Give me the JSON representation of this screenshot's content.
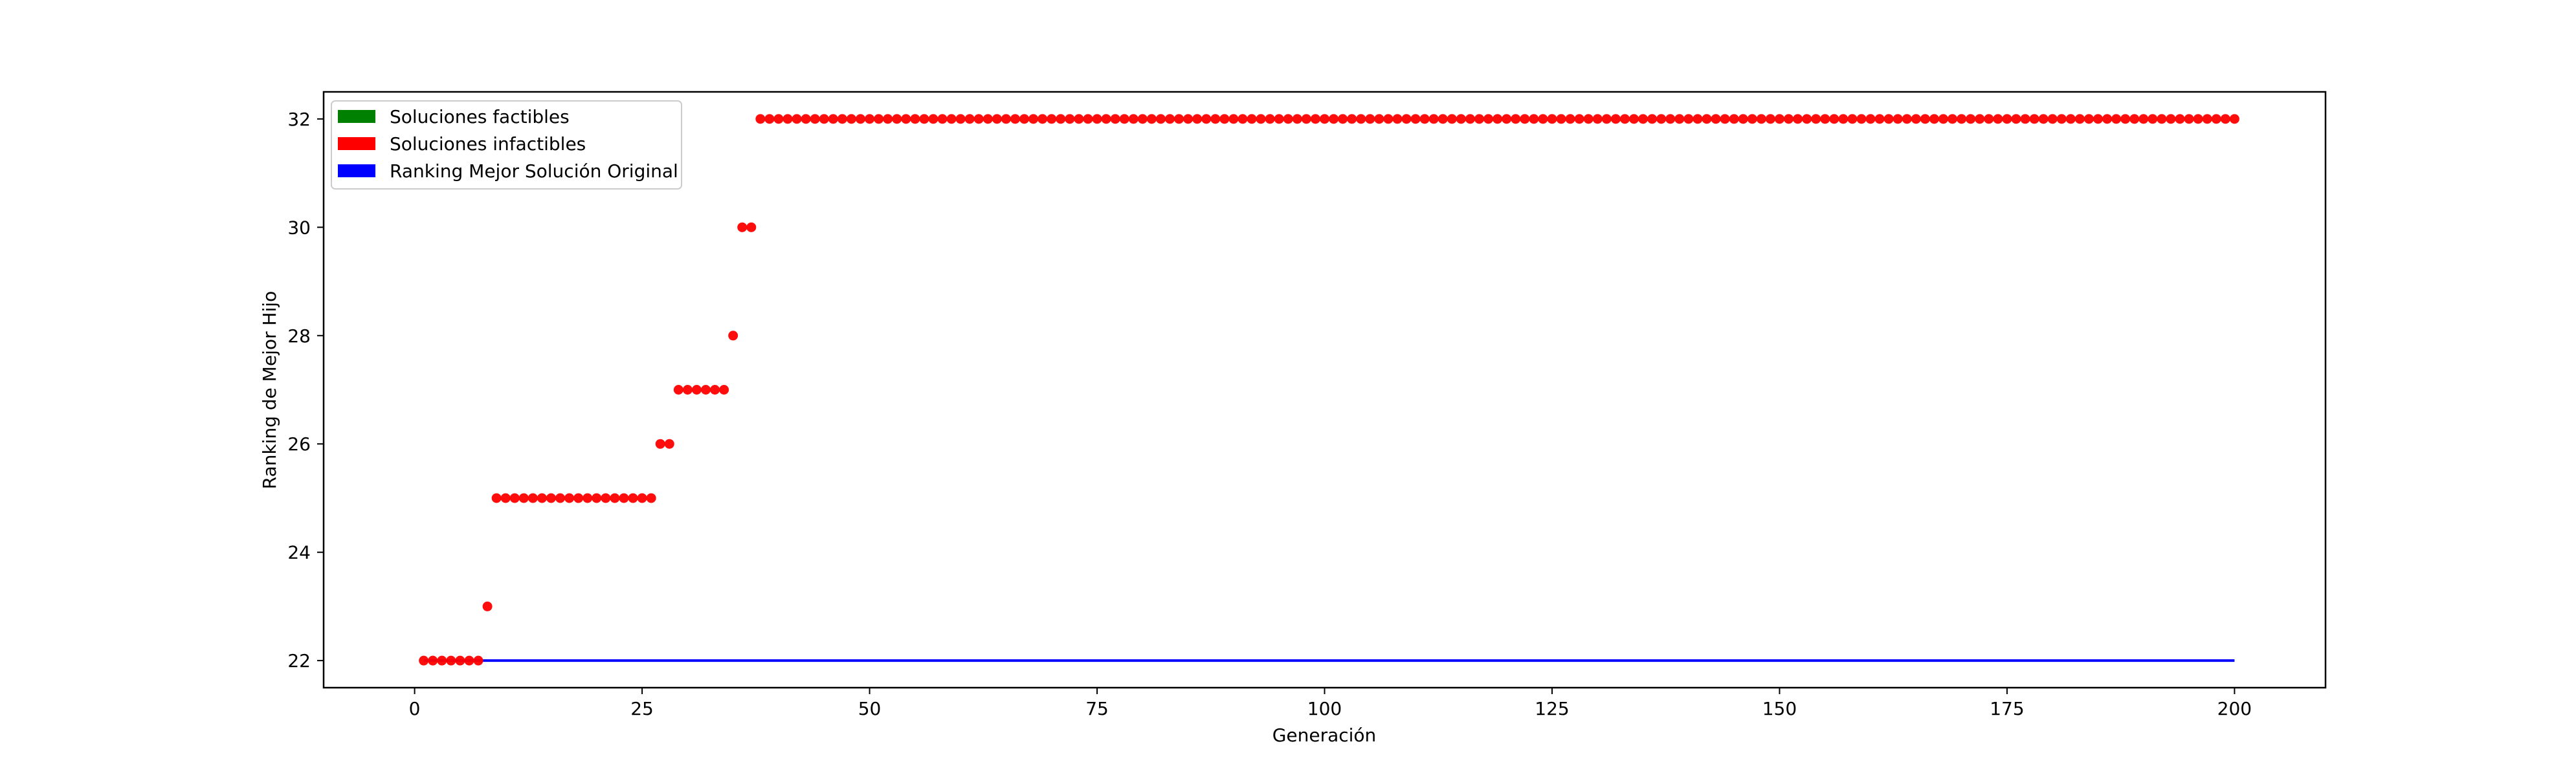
{
  "chart_data": {
    "type": "scatter",
    "title": "",
    "xlabel": "Generación",
    "ylabel": "Ranking de Mejor Hijo",
    "xlim": [
      -10,
      210
    ],
    "ylim": [
      21.5,
      32.5
    ],
    "xticks": [
      0,
      25,
      50,
      75,
      100,
      125,
      150,
      175,
      200
    ],
    "yticks": [
      22,
      24,
      26,
      28,
      30,
      32
    ],
    "grid": false,
    "legend_position": "top-left",
    "legend": [
      {
        "label": "Soluciones factibles",
        "color": "#008000"
      },
      {
        "label": "Soluciones infactibles",
        "color": "#ff0000"
      },
      {
        "label": "Ranking Mejor Solución Original",
        "color": "#0000ff"
      }
    ],
    "series": [
      {
        "name": "Soluciones infactibles",
        "kind": "points",
        "color": "#ff0000",
        "point_runs": [
          {
            "from": 1,
            "to": 7,
            "y": 22
          },
          {
            "from": 8,
            "to": 8,
            "y": 23
          },
          {
            "from": 9,
            "to": 26,
            "y": 25
          },
          {
            "from": 27,
            "to": 28,
            "y": 26
          },
          {
            "from": 29,
            "to": 34,
            "y": 27
          },
          {
            "from": 35,
            "to": 35,
            "y": 28
          },
          {
            "from": 36,
            "to": 37,
            "y": 30
          },
          {
            "from": 38,
            "to": 200,
            "y": 32
          }
        ]
      },
      {
        "name": "Ranking Mejor Solución Original",
        "kind": "line",
        "color": "#0000ff",
        "x": [
          1,
          200
        ],
        "y": [
          22,
          22
        ]
      }
    ]
  }
}
